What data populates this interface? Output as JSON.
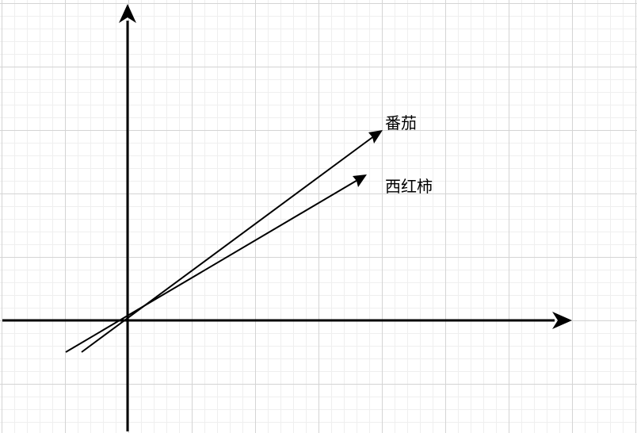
{
  "vectors": [
    {
      "label": "番茄"
    },
    {
      "label": "西红柿"
    }
  ],
  "colors": {
    "axis": "#000000",
    "vector": "#000000",
    "grid_major": "#d4d4d4",
    "grid_minor": "#efefef",
    "background": "#ffffff"
  }
}
